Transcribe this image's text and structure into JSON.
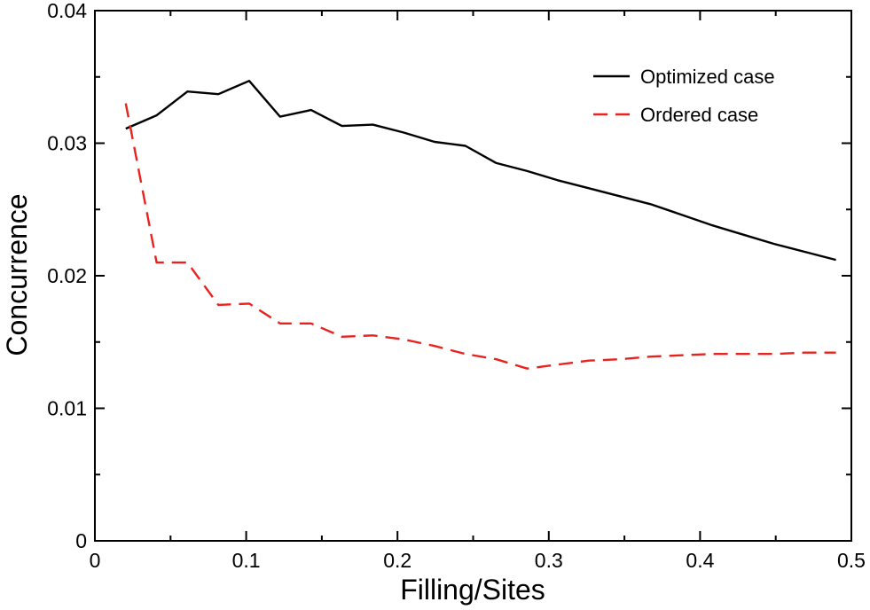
{
  "chart_data": {
    "type": "line",
    "title": "",
    "xlabel": "Filling/Sites",
    "ylabel": "Concurrence",
    "xlim": [
      0,
      0.5
    ],
    "ylim": [
      0,
      0.04
    ],
    "xticks": [
      0,
      0.1,
      0.2,
      0.3,
      0.4,
      0.5
    ],
    "xtick_labels": [
      "0",
      "0.1",
      "0.2",
      "0.3",
      "0.4",
      "0.5"
    ],
    "yticks": [
      0,
      0.01,
      0.02,
      0.03,
      0.04
    ],
    "ytick_labels": [
      "0",
      "0.01",
      "0.02",
      "0.03",
      "0.04"
    ],
    "grid": false,
    "legend_position": "top-right",
    "series": [
      {
        "name": "Optimized case",
        "color": "#000000",
        "style": "solid",
        "x": [
          0.0204,
          0.0408,
          0.0612,
          0.0816,
          0.102,
          0.1224,
          0.1429,
          0.1633,
          0.1837,
          0.2041,
          0.2245,
          0.2449,
          0.2653,
          0.2857,
          0.3061,
          0.3265,
          0.3469,
          0.3673,
          0.3878,
          0.4082,
          0.4286,
          0.449,
          0.4694,
          0.4898
        ],
        "y": [
          0.0311,
          0.0321,
          0.0339,
          0.0337,
          0.0347,
          0.032,
          0.0325,
          0.0313,
          0.0314,
          0.0308,
          0.0301,
          0.0298,
          0.0285,
          0.0279,
          0.0272,
          0.0266,
          0.026,
          0.0254,
          0.0246,
          0.0238,
          0.0231,
          0.0224,
          0.0218,
          0.0212
        ]
      },
      {
        "name": "Ordered case",
        "color": "#e8231f",
        "style": "dashed",
        "x": [
          0.0204,
          0.0408,
          0.0612,
          0.0816,
          0.102,
          0.1224,
          0.1429,
          0.1633,
          0.1837,
          0.2041,
          0.2245,
          0.2449,
          0.2653,
          0.2857,
          0.3061,
          0.3265,
          0.3469,
          0.3673,
          0.3878,
          0.4082,
          0.4286,
          0.449,
          0.4694,
          0.4898
        ],
        "y": [
          0.033,
          0.021,
          0.021,
          0.0178,
          0.0179,
          0.0164,
          0.0164,
          0.0154,
          0.0155,
          0.0152,
          0.0147,
          0.0141,
          0.0137,
          0.013,
          0.0133,
          0.0136,
          0.0137,
          0.0139,
          0.014,
          0.0141,
          0.0141,
          0.0141,
          0.0142,
          0.0142
        ]
      }
    ]
  }
}
